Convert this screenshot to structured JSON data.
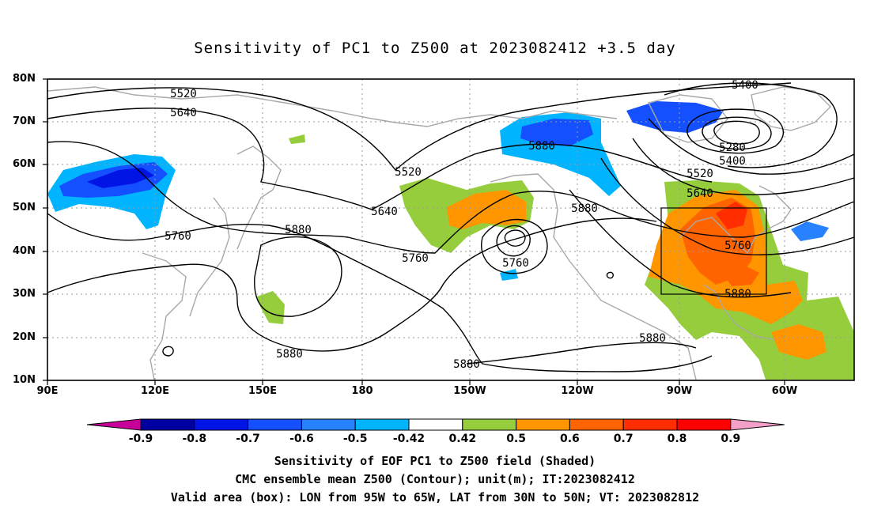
{
  "title": "Sensitivity of PC1 to Z500 at 2023082412 +3.5 day",
  "lat_labels": [
    "80N",
    "70N",
    "60N",
    "50N",
    "40N",
    "30N",
    "20N",
    "10N"
  ],
  "lon_labels": [
    "90E",
    "120E",
    "150E",
    "180",
    "150W",
    "120W",
    "90W",
    "60W"
  ],
  "contour_labels": [
    "5520",
    "5640",
    "5760",
    "5880",
    "5880",
    "5640",
    "5520",
    "5760",
    "5760",
    "5880",
    "5400",
    "5280",
    "5400",
    "5520",
    "5640",
    "5760",
    "5880",
    "5880",
    "5880",
    "5880"
  ],
  "colorbar": {
    "labels": [
      "-0.9",
      "-0.8",
      "-0.7",
      "-0.6",
      "-0.5",
      "-0.42",
      "0.42",
      "0.5",
      "0.6",
      "0.7",
      "0.8",
      "0.9"
    ],
    "colors": [
      "#c8009a",
      "#0000a0",
      "#0014e6",
      "#1450ff",
      "#2882ff",
      "#00b4ff",
      "#ffffff",
      "#96cd3c",
      "#ff9600",
      "#ff6400",
      "#ff2d00",
      "#ff0000",
      "#f5a0c8"
    ]
  },
  "captions": {
    "line1": "Sensitivity of EOF PC1 to Z500 field (Shaded)",
    "line2": "CMC ensemble mean Z500 (Contour); unit(m); IT:2023082412",
    "line3": "Valid area (box): LON from 95W to 65W, LAT from 30N to 50N; VT: 2023082812"
  }
}
